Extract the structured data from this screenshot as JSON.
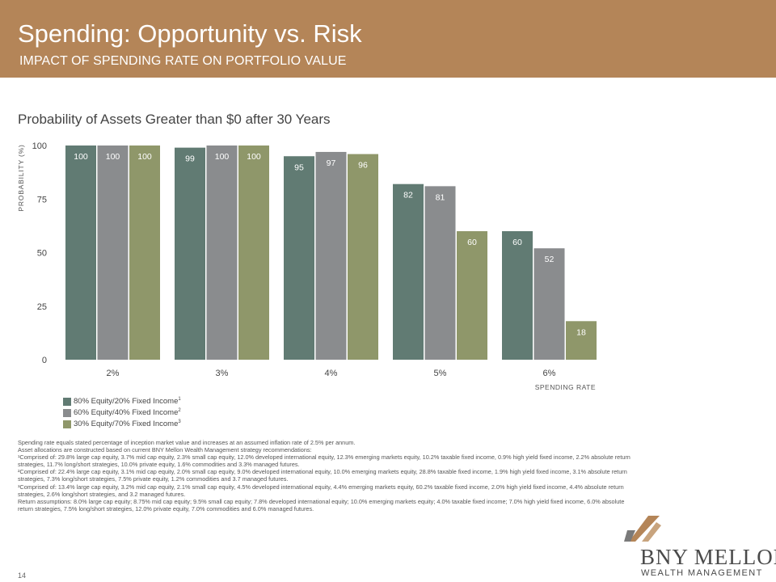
{
  "header": {
    "title": "Spending: Opportunity vs. Risk",
    "subtitle": "IMPACT OF SPENDING RATE ON PORTFOLIO VALUE"
  },
  "colors": {
    "header_bg": "#b48558",
    "series1": "#617b73",
    "series2": "#8a8c8e",
    "series3": "#8f976a"
  },
  "chart_data": {
    "type": "bar",
    "title": "Probability of Assets Greater than $0 after 30 Years",
    "ylabel": "PROBABILITY (%)",
    "xlabel": "SPENDING RATE",
    "ylim": [
      0,
      100
    ],
    "yticks": [
      0,
      25,
      50,
      75,
      100
    ],
    "categories": [
      "2%",
      "3%",
      "4%",
      "5%",
      "6%"
    ],
    "series": [
      {
        "name": "80% Equity/20% Fixed Income",
        "sup": "1",
        "values": [
          100,
          99,
          95,
          82,
          60
        ]
      },
      {
        "name": "60% Equity/40% Fixed Income",
        "sup": "2",
        "values": [
          100,
          100,
          97,
          81,
          52
        ]
      },
      {
        "name": "30% Equity/70% Fixed Income",
        "sup": "3",
        "values": [
          100,
          100,
          96,
          60,
          18
        ]
      }
    ],
    "grid": false,
    "legend": "bottom-left"
  },
  "footnotes": [
    "Spending rate equals stated percentage of inception market value and increases at an assumed inflation rate of 2.5% per annum.",
    "Asset allocations are constructed based on current BNY Mellon Wealth Management strategy recommendations:",
    "¹Comprised of: 29.8% large cap equity, 3.7% mid cap equity, 2.3% small cap equity, 12.0% developed international equity, 12.3% emerging markets equity, 10.2% taxable fixed income, 0.9% high yield fixed income, 2.2% absolute return strategies, 11.7% long/short strategies, 10.0% private equity, 1.6% commodities and 3.3% managed futures.",
    "²Comprised of: 22.4% large cap equity, 3.1% mid cap equity, 2.0% small cap equity, 9.0% developed international equity, 10.0% emerging markets equity, 28.8% taxable fixed income, 1.9% high yield fixed income, 3.1% absolute return strategies, 7.3% long/short strategies, 7.5% private equity, 1.2% commodities and 3.7 managed futures.",
    "³Comprised of: 13.4% large cap equity, 3.2% mid cap equity, 2.1% small cap equity, 4.5% developed international equity, 4.4% emerging markets equity, 60.2% taxable fixed income, 2.0% high yield fixed income, 4.4% absolute return strategies, 2.6% long/short strategies, and 3.2 managed futures.",
    "Return assumptions: 8.0% large cap equity; 8.75% mid cap equity; 9.5% small cap equity; 7.8% developed international equity; 10.0% emerging markets equity; 4.0% taxable fixed income; 7.0% high yield fixed income, 6.0% absolute return strategies, 7.5% long/short strategies, 12.0% private equity, 7.0% commodities and 6.0% managed futures."
  ],
  "page_number": "14",
  "logo": {
    "name": "BNY MELLON",
    "tagline": "WEALTH MANAGEMENT"
  }
}
